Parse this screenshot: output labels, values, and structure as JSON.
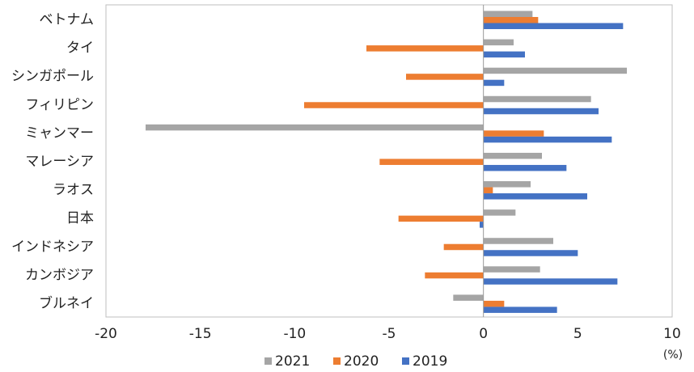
{
  "chart_data": {
    "type": "bar",
    "orientation": "horizontal",
    "categories": [
      "ベトナム",
      "タイ",
      "シンガポール",
      "フィリピン",
      "ミャンマー",
      "マレーシア",
      "ラオス",
      "日本",
      "インドネシア",
      "カンボジア",
      "ブルネイ"
    ],
    "series": [
      {
        "name": "2021",
        "color": "#a5a5a5",
        "values": [
          2.6,
          1.6,
          7.6,
          5.7,
          -17.9,
          3.1,
          2.5,
          1.7,
          3.7,
          3.0,
          -1.6
        ]
      },
      {
        "name": "2020",
        "color": "#ed7d31",
        "values": [
          2.9,
          -6.2,
          -4.1,
          -9.5,
          3.2,
          -5.5,
          0.5,
          -4.5,
          -2.1,
          -3.1,
          1.1
        ]
      },
      {
        "name": "2019",
        "color": "#4472c4",
        "values": [
          7.4,
          2.2,
          1.1,
          6.1,
          6.8,
          4.4,
          5.5,
          -0.2,
          5.0,
          7.1,
          3.9
        ]
      }
    ],
    "xlim": [
      -20,
      10
    ],
    "xticks": [
      "-20",
      "-15",
      "-10",
      "-5",
      "0",
      "5",
      "10"
    ],
    "xticks_values": [
      -20,
      -15,
      -10,
      -5,
      0,
      5,
      10
    ],
    "unit_label": "(%)",
    "legend_position": "bottom",
    "grid": false
  }
}
